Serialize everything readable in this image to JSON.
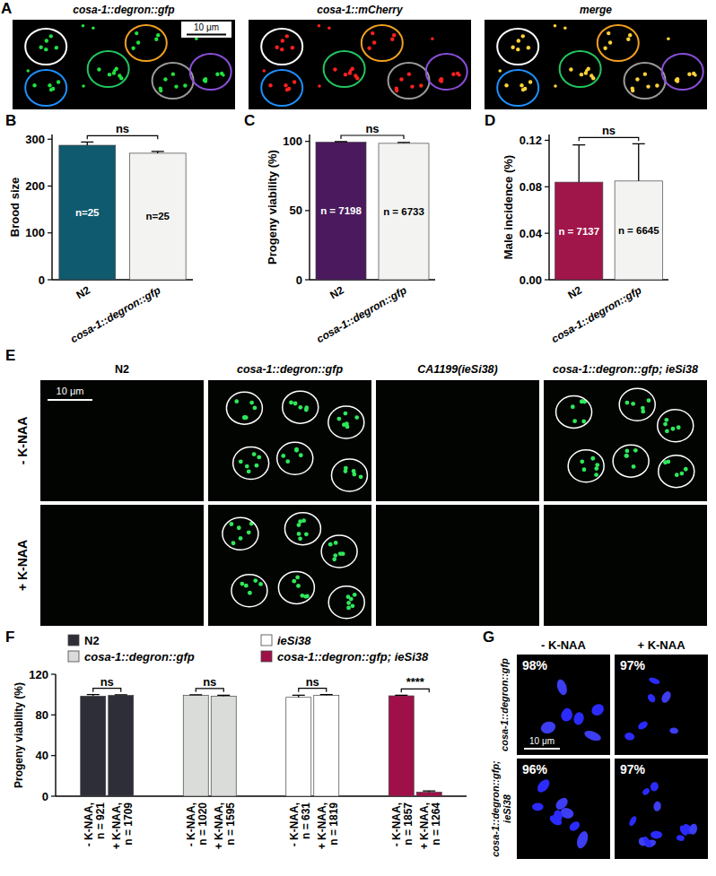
{
  "panel_a": {
    "letter": "A",
    "titles": [
      "cosa-1::degron::gfp",
      "cosa-1::mCherry",
      "merge"
    ],
    "scale_bar": "10 μm"
  },
  "chart_data": [
    {
      "type": "bar",
      "panel_label": "B",
      "ylabel": "Brood size",
      "categories": [
        "N2",
        "cosa-1::degron::gfp"
      ],
      "values": [
        287,
        270
      ],
      "errors": [
        7,
        4
      ],
      "colors": [
        "#0f5a6e",
        "#f3f4f2"
      ],
      "n_labels": [
        "n=25",
        "n=25"
      ],
      "significance": [
        "ns"
      ],
      "ylim": [
        0,
        310
      ],
      "yticks": [
        0,
        100,
        200,
        300
      ],
      "grid": false
    },
    {
      "type": "bar",
      "panel_label": "C",
      "ylabel": "Progeny viability (%)",
      "categories": [
        "N2",
        "cosa-1::degron::gfp"
      ],
      "values": [
        99.4,
        98.6
      ],
      "errors": [
        0.4,
        0.6
      ],
      "colors": [
        "#4b1a5e",
        "#f3f4f2"
      ],
      "n_labels": [
        "n = 7198",
        "n = 6733"
      ],
      "significance": [
        "ns"
      ],
      "ylim": [
        0,
        105
      ],
      "yticks": [
        0,
        50,
        100
      ],
      "grid": false
    },
    {
      "type": "bar",
      "panel_label": "D",
      "ylabel": "Male incidence (%)",
      "categories": [
        "N2",
        "cosa-1::degron::gfp"
      ],
      "values": [
        0.084,
        0.085
      ],
      "errors": [
        0.032,
        0.032
      ],
      "colors": [
        "#a0154a",
        "#f3f4f2"
      ],
      "n_labels": [
        "n = 7137",
        "n = 6645"
      ],
      "significance": [
        "ns"
      ],
      "ylim": [
        0,
        0.125
      ],
      "yticks": [
        {
          "value": 0,
          "label": "0.00"
        },
        {
          "value": 0.04,
          "label": "0.04"
        },
        {
          "value": 0.08,
          "label": "0.08"
        },
        {
          "value": 0.12,
          "label": "0.12"
        }
      ],
      "grid": false
    },
    {
      "type": "bar",
      "panel_label": "F",
      "ylabel": "Progeny viability (%)",
      "categories": [
        "- K-NAA, n = 921",
        "+ K-NAA, n = 1709",
        "- K-NAA, n = 1020",
        "+ K-NAA, n = 1595",
        "- K-NAA, n = 631",
        "+ K-NAA, n = 1819",
        "- K-NAA, n = 1857",
        "+ K-NAA, n = 1264"
      ],
      "series": [
        {
          "name": "N2",
          "color": "#2e2e38",
          "values": [
            98.5,
            99.2,
            null,
            null,
            null,
            null,
            null,
            null
          ],
          "errors": [
            1.5,
            0.7,
            null,
            null,
            null,
            null,
            null,
            null
          ]
        },
        {
          "name": "cosa-1::degron::gfp",
          "color": "#d9dcd8",
          "values": [
            null,
            null,
            99.2,
            98.3,
            null,
            null,
            null,
            null
          ],
          "errors": [
            null,
            null,
            0.7,
            1.0,
            null,
            null,
            null,
            null
          ]
        },
        {
          "name": "ieSi38",
          "color": "#ffffff",
          "values": [
            null,
            null,
            null,
            null,
            97.3,
            99.2,
            null,
            null
          ],
          "errors": [
            null,
            null,
            null,
            null,
            2.0,
            0.8,
            null,
            null
          ]
        },
        {
          "name": "cosa-1::degron::gfp; ieSi38",
          "color": "#a01048",
          "values": [
            null,
            null,
            null,
            null,
            null,
            null,
            98.8,
            4.0
          ],
          "errors": [
            null,
            null,
            null,
            null,
            null,
            null,
            0.6,
            1.2
          ]
        }
      ],
      "significance": [
        "ns",
        "ns",
        "ns",
        "****"
      ],
      "ylim": [
        0,
        120
      ],
      "yticks": [
        0,
        40,
        80,
        120
      ],
      "legend": "top",
      "grid": false
    }
  ],
  "panel_e": {
    "letter": "E",
    "columns": [
      "N2",
      "cosa-1::degron::gfp",
      "CA1199(ieSi38)",
      "cosa-1::degron::gfp; ieSi38"
    ],
    "rows": [
      "- K-NAA",
      "+ K-NAA"
    ],
    "foci": [
      [
        false,
        true,
        false,
        true
      ],
      [
        false,
        true,
        false,
        false
      ]
    ],
    "scale_bar": "10 μm"
  },
  "panel_g": {
    "letter": "G",
    "columns": [
      "- K-NAA",
      "+ K-NAA"
    ],
    "rows": [
      "cosa-1::degron::gfp",
      "cosa-1::degron::gfp; ieSi38"
    ],
    "viability": [
      [
        "98%",
        "97%"
      ],
      [
        "96%",
        "97%"
      ]
    ],
    "scale_bar": "10 μm"
  }
}
